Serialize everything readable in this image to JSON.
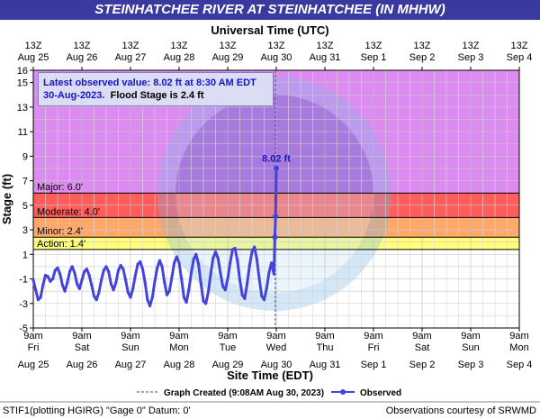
{
  "title": "STEINHATCHEE RIVER AT STEINHATCHEE (IN MHHW)",
  "colors": {
    "title_bg": "#3a3a9e",
    "major": "#dc8cf0",
    "moderate": "#ff5c5c",
    "minor": "#ffa86a",
    "action": "#ffff7a",
    "series": "#4444dd"
  },
  "chart_data": {
    "type": "line",
    "ylabel": "Stage (ft)",
    "top_axis_title": "Universal Time (UTC)",
    "bottom_axis_title": "Site Time (EDT)",
    "ylim": [
      -5,
      16
    ],
    "yticks": [
      -5,
      -3,
      -1,
      1,
      3,
      5,
      7,
      9,
      11,
      13,
      15,
      16
    ],
    "xlim_days": [
      0,
      10
    ],
    "top_ticks": [
      {
        "time": "13Z",
        "date": "Aug 25"
      },
      {
        "time": "13Z",
        "date": "Aug 26"
      },
      {
        "time": "13Z",
        "date": "Aug 27"
      },
      {
        "time": "13Z",
        "date": "Aug 28"
      },
      {
        "time": "13Z",
        "date": "Aug 29"
      },
      {
        "time": "13Z",
        "date": "Aug 30"
      },
      {
        "time": "13Z",
        "date": "Aug 31"
      },
      {
        "time": "13Z",
        "date": "Sep 1"
      },
      {
        "time": "13Z",
        "date": "Sep 2"
      },
      {
        "time": "13Z",
        "date": "Sep 3"
      },
      {
        "time": "13Z",
        "date": "Sep 4"
      }
    ],
    "bottom_ticks": [
      {
        "time": "9am",
        "day": "Fri",
        "date": "Aug 25"
      },
      {
        "time": "9am",
        "day": "Sat",
        "date": "Aug 26"
      },
      {
        "time": "9am",
        "day": "Sun",
        "date": "Aug 27"
      },
      {
        "time": "9am",
        "day": "Mon",
        "date": "Aug 28"
      },
      {
        "time": "9am",
        "day": "Tue",
        "date": "Aug 29"
      },
      {
        "time": "9am",
        "day": "Wed",
        "date": "Aug 30"
      },
      {
        "time": "9am",
        "day": "Thu",
        "date": "Aug 31"
      },
      {
        "time": "9am",
        "day": "Fri",
        "date": "Sep 1"
      },
      {
        "time": "9am",
        "day": "Sat",
        "date": "Sep 2"
      },
      {
        "time": "9am",
        "day": "Sun",
        "date": "Sep 3"
      },
      {
        "time": "9am",
        "day": "Mon",
        "date": "Sep 4"
      }
    ],
    "flood_categories": [
      {
        "label": "Major: 6.0'",
        "stage": 6.0
      },
      {
        "label": "Moderate: 4.0'",
        "stage": 4.0
      },
      {
        "label": "Minor: 2.4'",
        "stage": 2.4
      },
      {
        "label": "Action: 1.4'",
        "stage": 1.4
      }
    ],
    "graph_created_day": 4.98,
    "series": [
      {
        "name": "Observed",
        "x": [
          0.0,
          0.05,
          0.1,
          0.15,
          0.2,
          0.25,
          0.3,
          0.35,
          0.4,
          0.45,
          0.5,
          0.55,
          0.6,
          0.65,
          0.7,
          0.75,
          0.8,
          0.85,
          0.9,
          0.95,
          1.0,
          1.05,
          1.1,
          1.15,
          1.2,
          1.25,
          1.3,
          1.35,
          1.4,
          1.45,
          1.5,
          1.55,
          1.6,
          1.65,
          1.7,
          1.75,
          1.8,
          1.85,
          1.9,
          1.95,
          2.0,
          2.05,
          2.1,
          2.15,
          2.2,
          2.25,
          2.3,
          2.35,
          2.4,
          2.45,
          2.5,
          2.55,
          2.6,
          2.65,
          2.7,
          2.75,
          2.8,
          2.85,
          2.9,
          2.95,
          3.0,
          3.05,
          3.1,
          3.15,
          3.2,
          3.25,
          3.3,
          3.35,
          3.4,
          3.45,
          3.5,
          3.55,
          3.6,
          3.65,
          3.7,
          3.75,
          3.8,
          3.85,
          3.9,
          3.95,
          4.0,
          4.05,
          4.1,
          4.15,
          4.2,
          4.25,
          4.3,
          4.35,
          4.4,
          4.45,
          4.5,
          4.55,
          4.6,
          4.65,
          4.7,
          4.75,
          4.8,
          4.85,
          4.9,
          4.95,
          4.97,
          4.985,
          5.0
        ],
        "y": [
          -1.1,
          -1.9,
          -2.7,
          -2.5,
          -1.5,
          -0.7,
          -0.8,
          -1.2,
          -1.0,
          -0.3,
          -0.1,
          -0.6,
          -1.5,
          -2.0,
          -1.3,
          -0.4,
          0.0,
          -0.5,
          -1.4,
          -1.8,
          -1.1,
          -0.4,
          -0.2,
          -0.7,
          -1.5,
          -2.4,
          -2.7,
          -2.1,
          -1.1,
          -0.3,
          0.0,
          -0.4,
          -1.4,
          -1.9,
          -1.3,
          -0.3,
          0.1,
          -0.2,
          -1.1,
          -2.1,
          -2.5,
          -1.8,
          -0.7,
          0.2,
          0.4,
          -0.2,
          -1.3,
          -2.7,
          -3.2,
          -2.5,
          -1.2,
          -0.1,
          0.5,
          0.0,
          -1.3,
          -2.3,
          -2.0,
          -0.9,
          0.3,
          0.8,
          0.3,
          -1.0,
          -2.5,
          -2.9,
          -1.9,
          -0.5,
          0.6,
          1.0,
          0.2,
          -1.4,
          -2.8,
          -3.0,
          -2.1,
          -0.6,
          0.7,
          1.2,
          0.7,
          -0.5,
          -1.6,
          -1.9,
          -1.0,
          0.3,
          1.4,
          1.5,
          0.5,
          -1.1,
          -2.3,
          -2.6,
          -1.4,
          0.1,
          1.2,
          1.6,
          0.6,
          -1.0,
          -2.4,
          -2.7,
          -1.8,
          -0.5,
          0.3,
          -0.6,
          2.4,
          4.1,
          8.02
        ]
      }
    ],
    "annotations": {
      "latest_value_label": "8.02 ft",
      "latest_text_line1": "Latest observed value:  8.02  ft at 8:30 AM EDT",
      "latest_text_line2_date": "30-Aug-2023.",
      "latest_text_line2_flood": "Flood Stage is 2.4 ft"
    },
    "legend": [
      {
        "label": "Graph Created (9:08AM Aug 30, 2023)",
        "style": "dashed"
      },
      {
        "label": "Observed",
        "style": "line-dot"
      }
    ]
  },
  "footer": {
    "left": "STIF1(plotting HGIRG) \"Gage 0\" Datum: 0'",
    "right": "Observations courtesy of SRWMD"
  }
}
